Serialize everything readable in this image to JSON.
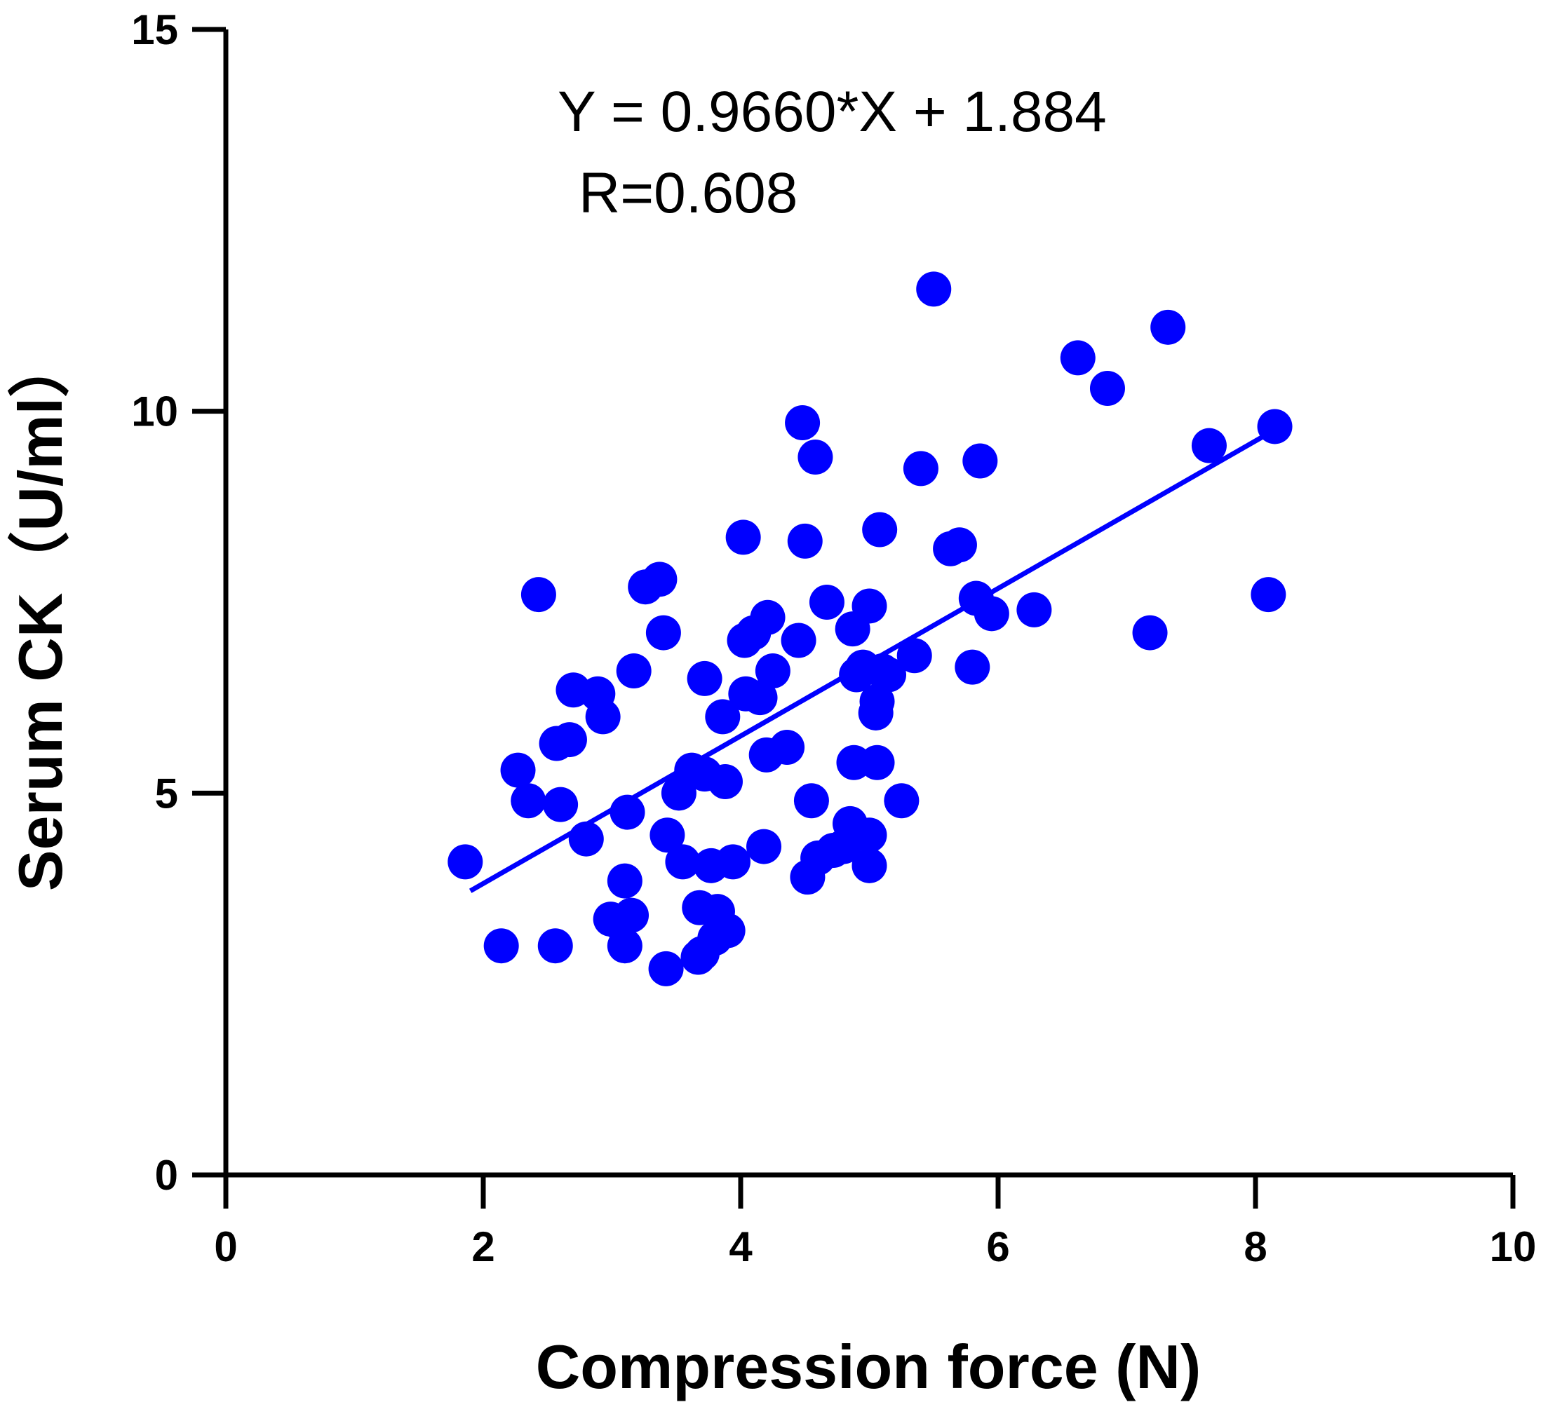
{
  "chart_data": {
    "type": "scatter",
    "title": "",
    "xlabel": "Compression force (N)",
    "ylabel": "Serum  CK（U/ml）",
    "xlim": [
      0,
      10
    ],
    "ylim": [
      0,
      15
    ],
    "xticks": [
      0,
      2,
      4,
      6,
      8,
      10
    ],
    "yticks": [
      0,
      5,
      10,
      15
    ],
    "grid": false,
    "legend": "none",
    "point_color": "#0000ff",
    "line_color": "#0000ff",
    "annotations": [
      "Y = 0.9660*X + 1.884",
      "R=0.608"
    ],
    "regression": {
      "slope": 0.966,
      "intercept": 1.884,
      "x_range": [
        1.9,
        8.1
      ]
    },
    "series": [
      {
        "points": [
          [
            1.86,
            4.1
          ],
          [
            2.14,
            3.0
          ],
          [
            2.27,
            5.3
          ],
          [
            2.35,
            4.9
          ],
          [
            2.43,
            7.6
          ],
          [
            2.56,
            3.0
          ],
          [
            2.6,
            4.85
          ],
          [
            2.57,
            5.65
          ],
          [
            2.67,
            5.7
          ],
          [
            2.7,
            6.35
          ],
          [
            2.8,
            4.4
          ],
          [
            2.89,
            6.3
          ],
          [
            2.93,
            6.0
          ],
          [
            2.99,
            3.35
          ],
          [
            3.06,
            3.3
          ],
          [
            3.1,
            3.0
          ],
          [
            3.1,
            3.85
          ],
          [
            3.12,
            4.75
          ],
          [
            3.15,
            3.4
          ],
          [
            3.17,
            6.6
          ],
          [
            3.26,
            7.7
          ],
          [
            3.37,
            7.8
          ],
          [
            3.4,
            7.1
          ],
          [
            3.43,
            4.45
          ],
          [
            3.42,
            2.7
          ],
          [
            3.52,
            5.0
          ],
          [
            3.55,
            4.1
          ],
          [
            3.62,
            5.3
          ],
          [
            3.67,
            2.85
          ],
          [
            3.68,
            3.5
          ],
          [
            3.7,
            2.9
          ],
          [
            3.72,
            5.25
          ],
          [
            3.72,
            6.5
          ],
          [
            3.77,
            4.05
          ],
          [
            3.8,
            3.1
          ],
          [
            3.82,
            3.45
          ],
          [
            3.86,
            6.0
          ],
          [
            3.88,
            5.15
          ],
          [
            3.9,
            3.2
          ],
          [
            3.94,
            4.1
          ],
          [
            4.02,
            8.35
          ],
          [
            4.03,
            7.0
          ],
          [
            4.04,
            6.3
          ],
          [
            4.1,
            7.1
          ],
          [
            4.15,
            6.25
          ],
          [
            4.18,
            4.3
          ],
          [
            4.2,
            5.5
          ],
          [
            4.21,
            7.3
          ],
          [
            4.25,
            6.6
          ],
          [
            4.36,
            5.6
          ],
          [
            4.45,
            7.0
          ],
          [
            4.48,
            9.85
          ],
          [
            4.5,
            8.3
          ],
          [
            4.52,
            3.9
          ],
          [
            4.55,
            4.9
          ],
          [
            4.58,
            9.4
          ],
          [
            4.6,
            4.15
          ],
          [
            4.67,
            7.5
          ],
          [
            4.72,
            4.25
          ],
          [
            4.8,
            4.3
          ],
          [
            4.85,
            4.6
          ],
          [
            4.87,
            7.15
          ],
          [
            4.88,
            5.4
          ],
          [
            4.9,
            6.55
          ],
          [
            4.95,
            6.65
          ],
          [
            5.0,
            4.45
          ],
          [
            5.0,
            7.45
          ],
          [
            5.0,
            4.05
          ],
          [
            5.05,
            6.05
          ],
          [
            5.06,
            5.4
          ],
          [
            5.06,
            6.2
          ],
          [
            5.08,
            8.45
          ],
          [
            5.1,
            6.6
          ],
          [
            5.15,
            6.55
          ],
          [
            5.25,
            4.9
          ],
          [
            5.35,
            6.8
          ],
          [
            5.4,
            9.25
          ],
          [
            5.5,
            11.6
          ],
          [
            5.63,
            8.2
          ],
          [
            5.7,
            8.25
          ],
          [
            5.8,
            6.65
          ],
          [
            5.83,
            7.55
          ],
          [
            5.86,
            9.35
          ],
          [
            5.95,
            7.35
          ],
          [
            6.28,
            7.4
          ],
          [
            6.62,
            10.7
          ],
          [
            6.85,
            10.3
          ],
          [
            7.18,
            7.1
          ],
          [
            7.32,
            11.1
          ],
          [
            7.64,
            9.55
          ],
          [
            8.1,
            7.6
          ],
          [
            8.15,
            9.8
          ]
        ]
      }
    ]
  }
}
